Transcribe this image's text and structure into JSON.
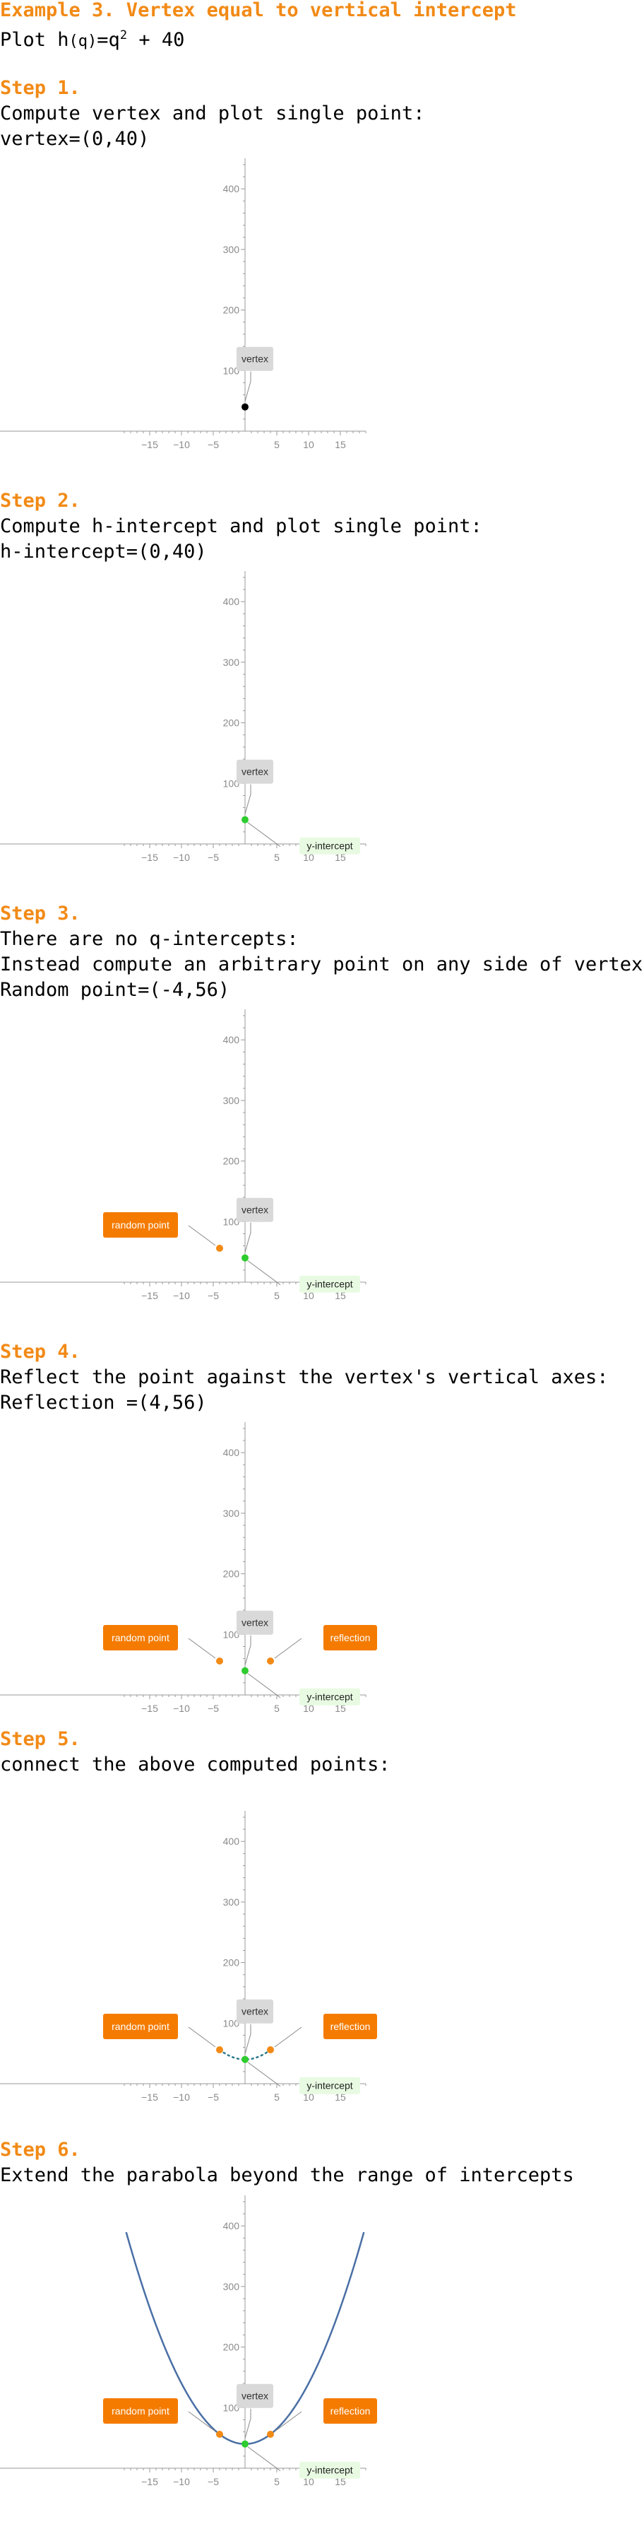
{
  "title": "Example 3. Vertex equal to vertical intercept",
  "intro": {
    "prefix": "Plot h",
    "paren": "(q)",
    "eq": "=q",
    "exp": "2",
    "rest": " + 40"
  },
  "steps": [
    {
      "heading": "Step 1.",
      "lines": [
        "Compute vertex and plot single point:",
        "vertex=(0,40)"
      ]
    },
    {
      "heading": "Step 2.",
      "lines": [
        "Compute h-intercept and plot single point:",
        "h-intercept=(0,40)"
      ]
    },
    {
      "heading": "Step 3.",
      "lines": [
        "There are no q-intercepts:",
        "Instead compute an arbitrary point on any side of vertex:",
        "Random point=(-4,56)"
      ]
    },
    {
      "heading": "Step 4.",
      "lines": [
        "Reflect the point against the vertex's vertical axes:",
        "Reflection =(4,56)"
      ]
    },
    {
      "heading": "Step 5.",
      "lines": [
        "connect the above computed points:"
      ]
    },
    {
      "heading": "Step 6.",
      "lines": [
        "Extend the parabola beyond the range of intercepts"
      ]
    }
  ],
  "labels": {
    "vertex": "vertex",
    "y_intercept": "y-intercept",
    "random_point": "random point",
    "reflection": "reflection"
  },
  "colors": {
    "heading": "#f28a16",
    "vertex_point": "#000000",
    "intercept_point": "#2ecc2e",
    "random_point": "#f28a16",
    "curve": "#4a6fa5",
    "dotted": "#2a7a8a",
    "vertex_label_bg": "#d9d9d9",
    "intercept_label_bg": "#e8fbe2",
    "orange_label_bg": "#f47b00"
  },
  "chart_data": [
    {
      "type": "scatter",
      "x_ticks": [
        -15,
        -10,
        -5,
        5,
        10,
        15
      ],
      "y_ticks": [
        100,
        200,
        300,
        400
      ],
      "xlim": [
        -19,
        19
      ],
      "ylim": [
        0,
        440
      ],
      "points": [
        {
          "x": 0,
          "y": 40,
          "label": "vertex"
        }
      ],
      "curve": "none"
    },
    {
      "type": "scatter",
      "x_ticks": [
        -15,
        -10,
        -5,
        5,
        10,
        15
      ],
      "y_ticks": [
        100,
        200,
        300,
        400
      ],
      "xlim": [
        -19,
        19
      ],
      "ylim": [
        0,
        440
      ],
      "points": [
        {
          "x": 0,
          "y": 40,
          "label": "vertex"
        },
        {
          "x": 0,
          "y": 40,
          "label": "y-intercept"
        }
      ],
      "curve": "none"
    },
    {
      "type": "scatter",
      "x_ticks": [
        -15,
        -10,
        -5,
        5,
        10,
        15
      ],
      "y_ticks": [
        100,
        200,
        300,
        400
      ],
      "xlim": [
        -19,
        19
      ],
      "ylim": [
        0,
        440
      ],
      "points": [
        {
          "x": 0,
          "y": 40,
          "label": "vertex"
        },
        {
          "x": 0,
          "y": 40,
          "label": "y-intercept"
        },
        {
          "x": -4,
          "y": 56,
          "label": "random point"
        }
      ],
      "curve": "none"
    },
    {
      "type": "scatter",
      "x_ticks": [
        -15,
        -10,
        -5,
        5,
        10,
        15
      ],
      "y_ticks": [
        100,
        200,
        300,
        400
      ],
      "xlim": [
        -19,
        19
      ],
      "ylim": [
        0,
        440
      ],
      "points": [
        {
          "x": 0,
          "y": 40,
          "label": "vertex"
        },
        {
          "x": 0,
          "y": 40,
          "label": "y-intercept"
        },
        {
          "x": -4,
          "y": 56,
          "label": "random point"
        },
        {
          "x": 4,
          "y": 56,
          "label": "reflection"
        }
      ],
      "curve": "none"
    },
    {
      "type": "line",
      "x_ticks": [
        -15,
        -10,
        -5,
        5,
        10,
        15
      ],
      "y_ticks": [
        100,
        200,
        300,
        400
      ],
      "xlim": [
        -19,
        19
      ],
      "ylim": [
        0,
        440
      ],
      "points": [
        {
          "x": 0,
          "y": 40,
          "label": "vertex"
        },
        {
          "x": 0,
          "y": 40,
          "label": "y-intercept"
        },
        {
          "x": -4,
          "y": 56,
          "label": "random point"
        },
        {
          "x": 4,
          "y": 56,
          "label": "reflection"
        }
      ],
      "curve": "dotted",
      "curve_range": [
        -4,
        4
      ]
    },
    {
      "type": "line",
      "x_ticks": [
        -15,
        -10,
        -5,
        5,
        10,
        15
      ],
      "y_ticks": [
        100,
        200,
        300,
        400
      ],
      "xlim": [
        -19,
        19
      ],
      "ylim": [
        0,
        440
      ],
      "points": [
        {
          "x": 0,
          "y": 40,
          "label": "vertex"
        },
        {
          "x": 0,
          "y": 40,
          "label": "y-intercept"
        },
        {
          "x": -4,
          "y": 56,
          "label": "random point"
        },
        {
          "x": 4,
          "y": 56,
          "label": "reflection"
        }
      ],
      "curve": "solid",
      "curve_range": [
        -18.7,
        18.7
      ]
    }
  ]
}
